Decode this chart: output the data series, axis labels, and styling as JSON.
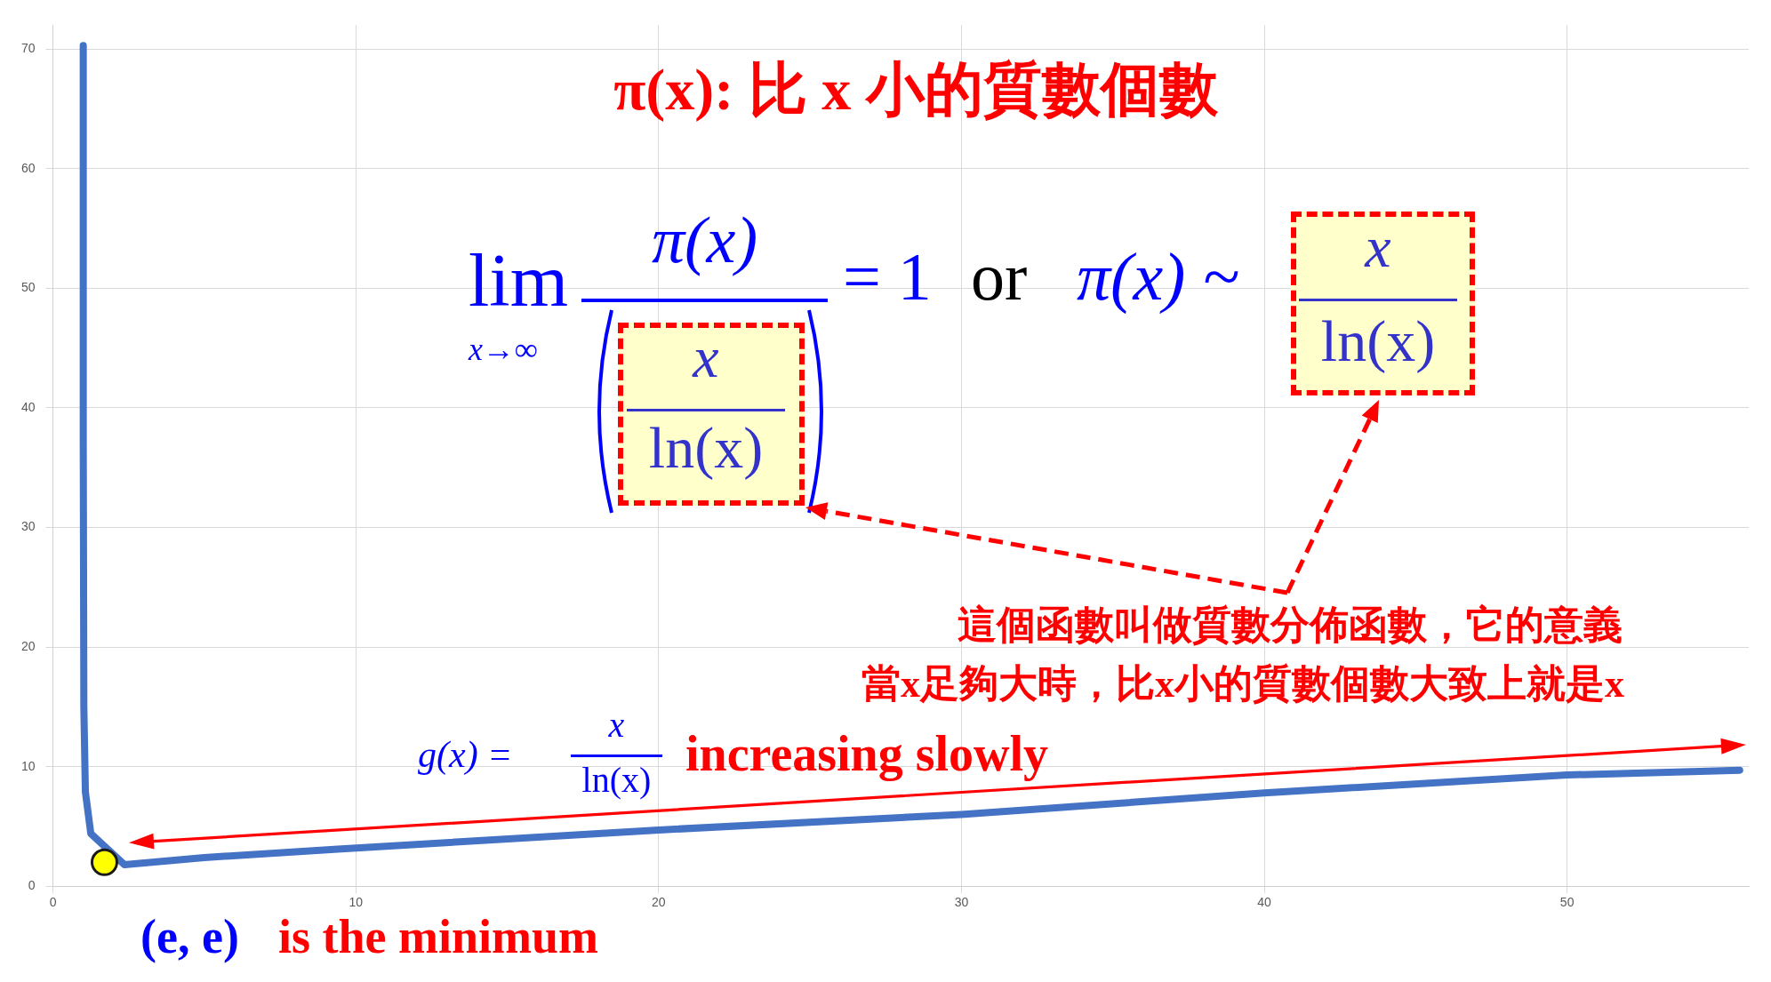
{
  "chart_data": {
    "type": "line",
    "title": "π(x): 比 x 小的質數個數",
    "annotations": [
      "lim",
      "x→∞",
      "π(x)",
      "x",
      "ln(x)",
      "= 1",
      "or",
      "π(x) ~",
      "x",
      "ln(x)",
      "這個函數叫做質數分佈函數，它的意義",
      "當x足夠大時，比x小的質數個數大致上就是x",
      "g(x) =",
      "x",
      "ln(x)",
      "increasing slowly",
      "(e, e)",
      "is the minimum"
    ],
    "xlim": [
      0,
      56
    ],
    "xticks": [
      0,
      10,
      20,
      30,
      40,
      50
    ],
    "ylim": [
      0,
      72
    ],
    "yticks": [
      0,
      10,
      20,
      30,
      40,
      50,
      60,
      70
    ],
    "grid": true,
    "series": [
      {
        "color": "#4472c4",
        "x": [
          1.0,
          1.0,
          1.02,
          1.07,
          1.25,
          2.36,
          5,
          9.4,
          20,
          30,
          40,
          50,
          55.7
        ],
        "values": [
          70.3,
          37.5,
          15,
          7.9,
          4.4,
          1.8,
          2.4,
          3.1,
          4.7,
          6.0,
          7.8,
          9.3,
          9.7
        ]
      },
      {
        "type": "scatter",
        "color": "#ffff00",
        "marker": "circle",
        "x": [
          1.7
        ],
        "values": [
          2.0
        ]
      }
    ]
  }
}
